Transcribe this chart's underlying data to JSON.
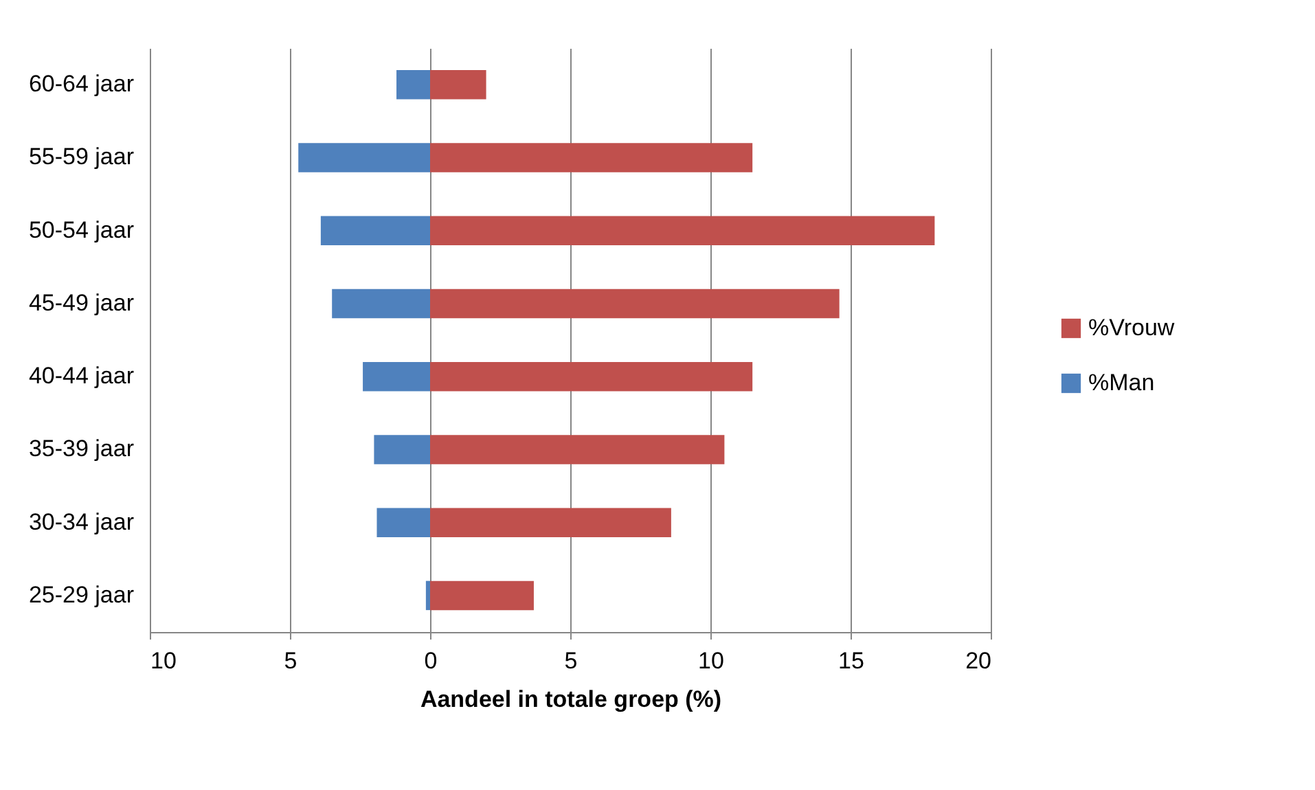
{
  "chart_data": {
    "type": "bar",
    "orientation": "horizontal",
    "stacked": true,
    "xlabel": "Aandeel in totale groep (%)",
    "categories": [
      "60-64 jaar",
      "55-59 jaar",
      "50-54 jaar",
      "45-49 jaar",
      "40-44 jaar",
      "35-39 jaar",
      "30-34 jaar",
      "25-29 jaar"
    ],
    "series": [
      {
        "name": "%Vrouw",
        "color": "#c0504d",
        "values": [
          2.0,
          11.5,
          18.0,
          14.6,
          11.5,
          10.5,
          8.6,
          3.7
        ]
      },
      {
        "name": "%Man",
        "color": "#4f81bd",
        "values": [
          -1.2,
          -4.7,
          -3.9,
          -3.5,
          -2.4,
          -2.0,
          -1.9,
          -0.15
        ]
      }
    ],
    "xlim": [
      -10,
      20
    ],
    "xticks": [
      {
        "value": -10,
        "label": "10"
      },
      {
        "value": -5,
        "label": "5"
      },
      0,
      5,
      10,
      15,
      20
    ],
    "grid": "x",
    "legend": "right"
  }
}
